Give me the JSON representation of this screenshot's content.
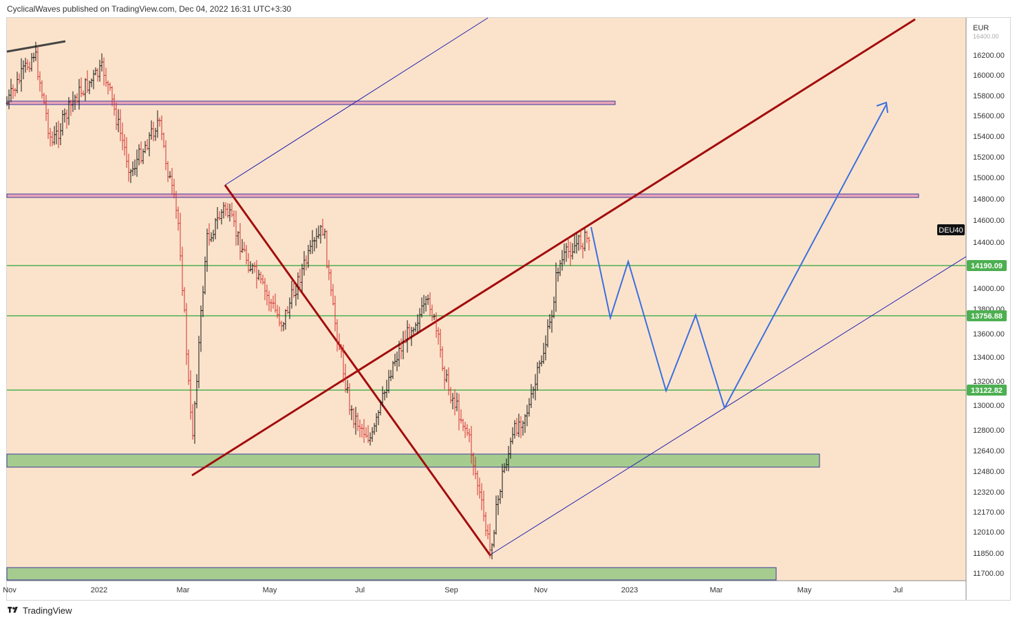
{
  "header": {
    "text": "CyclicalWaves published on TradingView.com, Dec 04, 2022 16:31 UTC+3:30"
  },
  "footer": {
    "brand": "TradingView"
  },
  "colors": {
    "background": "#fbe3cb",
    "candle_up": "#111111",
    "candle_down": "#d32f2f",
    "trend_dark_red": "#a30d0d",
    "channel_blue": "#1f1fb0",
    "projection_blue": "#3a6fe0",
    "support_green": "#4caf50",
    "zone_green": "#a5cc8e",
    "zone_pink": "#e8a6b8",
    "price_tag_green": "#4caf50"
  },
  "chart_data": {
    "type": "candlestick",
    "symbol": "DEU40",
    "currency": "EUR",
    "y_ticks": [
      16200,
      16000,
      15800,
      15600,
      15400,
      15200,
      15000,
      14800,
      14600,
      14400,
      14000,
      13600,
      13400,
      13200,
      13000,
      12800,
      12640,
      12480,
      12320,
      12170,
      12010,
      11850,
      11700
    ],
    "y_ticks_partial": [
      "16400.00",
      "13800.00"
    ],
    "x_ticks": [
      "Nov",
      "2022",
      "Mar",
      "May",
      "Jul",
      "Sep",
      "Nov",
      "2023",
      "Mar",
      "May",
      "Jul"
    ],
    "price_levels": [
      {
        "label": "14190.09",
        "value": 14190.09
      },
      {
        "label": "13756.88",
        "value": 13756.88
      },
      {
        "label": "13122.82",
        "value": 13122.82
      }
    ],
    "last_price_label": "DEU40",
    "last_price": 14530,
    "key_points": [
      {
        "date": "2021-11",
        "price": 16290,
        "note": "high"
      },
      {
        "date": "2022-03",
        "price": 12440,
        "note": "low"
      },
      {
        "date": "2022-03",
        "price": 14920,
        "note": "rebound high"
      },
      {
        "date": "2022-06",
        "price": 14700,
        "note": "high"
      },
      {
        "date": "2022-07",
        "price": 12400,
        "note": "low"
      },
      {
        "date": "2022-08",
        "price": 13930,
        "note": "high"
      },
      {
        "date": "2022-09",
        "price": 11850,
        "note": "low"
      },
      {
        "date": "2022-12",
        "price": 14580,
        "note": "current"
      }
    ],
    "projection_path": [
      14530,
      13750,
      14250,
      13120,
      13750,
      12960,
      15710
    ]
  }
}
